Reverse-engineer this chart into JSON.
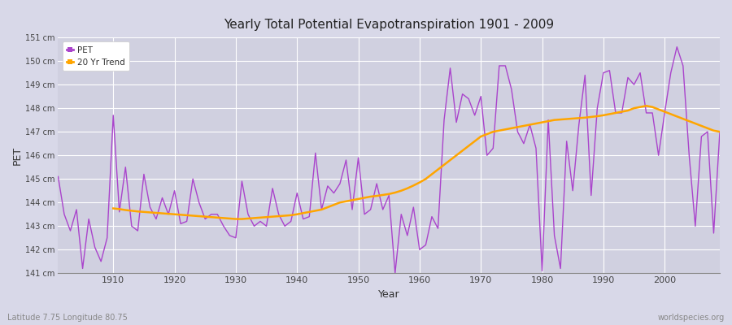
{
  "title": "Yearly Total Potential Evapotranspiration 1901 - 2009",
  "xlabel": "Year",
  "ylabel": "PET",
  "footer_left": "Latitude 7.75 Longitude 80.75",
  "footer_right": "worldspecies.org",
  "pet_color": "#aa44cc",
  "trend_color": "#FFA500",
  "fig_bg_color": "#d8d8e8",
  "plot_bg_color": "#d0d0e0",
  "ylim": [
    141,
    151
  ],
  "ytick_labels": [
    "141 cm",
    "142 cm",
    "143 cm",
    "144 cm",
    "145 cm",
    "146 cm",
    "147 cm",
    "148 cm",
    "149 cm",
    "150 cm",
    "151 cm"
  ],
  "years": [
    1901,
    1902,
    1903,
    1904,
    1905,
    1906,
    1907,
    1908,
    1909,
    1910,
    1911,
    1912,
    1913,
    1914,
    1915,
    1916,
    1917,
    1918,
    1919,
    1920,
    1921,
    1922,
    1923,
    1924,
    1925,
    1926,
    1927,
    1928,
    1929,
    1930,
    1931,
    1932,
    1933,
    1934,
    1935,
    1936,
    1937,
    1938,
    1939,
    1940,
    1941,
    1942,
    1943,
    1944,
    1945,
    1946,
    1947,
    1948,
    1949,
    1950,
    1951,
    1952,
    1953,
    1954,
    1955,
    1956,
    1957,
    1958,
    1959,
    1960,
    1961,
    1962,
    1963,
    1964,
    1965,
    1966,
    1967,
    1968,
    1969,
    1970,
    1971,
    1972,
    1973,
    1974,
    1975,
    1976,
    1977,
    1978,
    1979,
    1980,
    1981,
    1982,
    1983,
    1984,
    1985,
    1986,
    1987,
    1988,
    1989,
    1990,
    1991,
    1992,
    1993,
    1994,
    1995,
    1996,
    1997,
    1998,
    1999,
    2000,
    2001,
    2002,
    2003,
    2004,
    2005,
    2006,
    2007,
    2008,
    2009
  ],
  "pet_values": [
    145.1,
    143.5,
    142.8,
    143.7,
    141.2,
    143.3,
    142.1,
    141.5,
    142.5,
    147.7,
    143.6,
    145.5,
    143.0,
    142.8,
    145.2,
    143.8,
    143.3,
    144.2,
    143.5,
    144.5,
    143.1,
    143.2,
    145.0,
    144.0,
    143.3,
    143.5,
    143.5,
    143.0,
    142.6,
    142.5,
    144.9,
    143.5,
    143.0,
    143.2,
    143.0,
    144.6,
    143.5,
    143.0,
    143.2,
    144.4,
    143.3,
    143.4,
    146.1,
    143.7,
    144.7,
    144.4,
    144.8,
    145.8,
    143.7,
    145.9,
    143.5,
    143.7,
    144.8,
    143.7,
    144.3,
    141.0,
    143.5,
    142.6,
    143.8,
    142.0,
    142.2,
    143.4,
    142.9,
    147.5,
    149.7,
    147.4,
    148.6,
    148.4,
    147.7,
    148.5,
    146.0,
    146.3,
    149.8,
    149.8,
    148.8,
    147.0,
    146.5,
    147.3,
    146.3,
    141.1,
    147.5,
    142.6,
    141.2,
    146.6,
    144.5,
    147.3,
    149.4,
    144.3,
    148.0,
    149.5,
    149.6,
    147.8,
    147.8,
    149.3,
    149.0,
    149.5,
    147.8,
    147.8,
    146.0,
    147.8,
    149.5,
    150.6,
    149.8,
    146.0,
    143.0,
    146.8,
    147.0,
    142.7,
    147.0
  ],
  "trend_years": [
    1910,
    1911,
    1912,
    1913,
    1914,
    1915,
    1916,
    1917,
    1918,
    1919,
    1920,
    1921,
    1922,
    1923,
    1924,
    1925,
    1926,
    1927,
    1928,
    1929,
    1930,
    1931,
    1932,
    1933,
    1934,
    1935,
    1936,
    1937,
    1938,
    1939,
    1940,
    1941,
    1942,
    1943,
    1944,
    1945,
    1946,
    1947,
    1948,
    1949,
    1950,
    1951,
    1952,
    1953,
    1954,
    1955,
    1956,
    1957,
    1958,
    1959,
    1960,
    1961,
    1962,
    1963,
    1964,
    1965,
    1966,
    1967,
    1968,
    1969,
    1970,
    1971,
    1972,
    1973,
    1974,
    1975,
    1976,
    1977,
    1978,
    1979,
    1980,
    1981,
    1982,
    1983,
    1984,
    1985,
    1986,
    1987,
    1988,
    1989,
    1990,
    1991,
    1992,
    1993,
    1994,
    1995,
    1996,
    1997,
    1998,
    1999,
    2000,
    2001,
    2002,
    2003,
    2004,
    2005,
    2006,
    2007,
    2008,
    2009
  ],
  "trend_values": [
    143.75,
    143.72,
    143.68,
    143.65,
    143.62,
    143.6,
    143.58,
    143.56,
    143.54,
    143.52,
    143.5,
    143.48,
    143.46,
    143.44,
    143.42,
    143.4,
    143.38,
    143.36,
    143.34,
    143.32,
    143.3,
    143.3,
    143.32,
    143.34,
    143.36,
    143.38,
    143.4,
    143.42,
    143.44,
    143.46,
    143.5,
    143.55,
    143.6,
    143.65,
    143.7,
    143.8,
    143.9,
    144.0,
    144.05,
    144.1,
    144.15,
    144.2,
    144.25,
    144.28,
    144.32,
    144.36,
    144.42,
    144.5,
    144.6,
    144.72,
    144.85,
    145.0,
    145.2,
    145.4,
    145.6,
    145.8,
    146.0,
    146.2,
    146.4,
    146.6,
    146.8,
    146.9,
    147.0,
    147.05,
    147.1,
    147.15,
    147.2,
    147.25,
    147.3,
    147.35,
    147.4,
    147.45,
    147.5,
    147.52,
    147.54,
    147.56,
    147.58,
    147.6,
    147.63,
    147.66,
    147.7,
    147.75,
    147.8,
    147.85,
    147.9,
    148.0,
    148.05,
    148.1,
    148.05,
    147.95,
    147.85,
    147.75,
    147.65,
    147.55,
    147.45,
    147.35,
    147.25,
    147.15,
    147.05,
    147.0
  ]
}
